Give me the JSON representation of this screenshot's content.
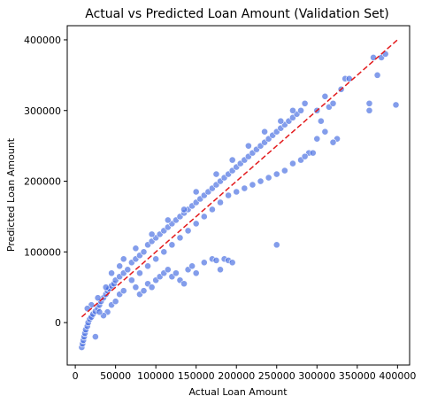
{
  "chart_data": {
    "type": "scatter",
    "title": "Actual vs Predicted Loan Amount (Validation Set)",
    "xlabel": "Actual Loan Amount",
    "ylabel": "Predicted Loan Amount",
    "xlim": [
      -10000,
      415000
    ],
    "ylim": [
      -60000,
      420000
    ],
    "x_ticks": [
      {
        "value": 0,
        "label": "0"
      },
      {
        "value": 50000,
        "label": "50000"
      },
      {
        "value": 100000,
        "label": "100000"
      },
      {
        "value": 150000,
        "label": "150000"
      },
      {
        "value": 200000,
        "label": "200000"
      },
      {
        "value": 250000,
        "label": "250000"
      },
      {
        "value": 300000,
        "label": "300000"
      },
      {
        "value": 350000,
        "label": "350000"
      },
      {
        "value": 400000,
        "label": "400000"
      }
    ],
    "y_ticks": [
      {
        "value": 0,
        "label": "0"
      },
      {
        "value": 100000,
        "label": "100000"
      },
      {
        "value": 200000,
        "label": "200000"
      },
      {
        "value": 300000,
        "label": "300000"
      },
      {
        "value": 400000,
        "label": "400000"
      }
    ],
    "grid": false,
    "legend": "none",
    "point_color": "#4169e1",
    "reference_line": {
      "style": "dashed",
      "color": "#e31a1c",
      "points": [
        [
          8000,
          8000
        ],
        [
          400000,
          400000
        ]
      ]
    },
    "series": [
      {
        "values": [
          [
            8000,
            -35000
          ],
          [
            9000,
            -30000
          ],
          [
            10000,
            -25000
          ],
          [
            11000,
            -20000
          ],
          [
            12000,
            -15000
          ],
          [
            13000,
            -10000
          ],
          [
            15000,
            -5000
          ],
          [
            16000,
            0
          ],
          [
            18000,
            5000
          ],
          [
            20000,
            8000
          ],
          [
            22000,
            12000
          ],
          [
            25000,
            16000
          ],
          [
            28000,
            20000
          ],
          [
            30000,
            25000
          ],
          [
            32000,
            30000
          ],
          [
            35000,
            35000
          ],
          [
            38000,
            40000
          ],
          [
            40000,
            45000
          ],
          [
            42000,
            48000
          ],
          [
            45000,
            52000
          ],
          [
            48000,
            55000
          ],
          [
            50000,
            60000
          ],
          [
            55000,
            65000
          ],
          [
            60000,
            70000
          ],
          [
            65000,
            75000
          ],
          [
            25000,
            -20000
          ],
          [
            40000,
            15000
          ],
          [
            45000,
            25000
          ],
          [
            50000,
            30000
          ],
          [
            55000,
            40000
          ],
          [
            60000,
            45000
          ],
          [
            35000,
            10000
          ],
          [
            30000,
            15000
          ],
          [
            20000,
            25000
          ],
          [
            15000,
            20000
          ],
          [
            28000,
            35000
          ],
          [
            38000,
            50000
          ],
          [
            45000,
            70000
          ],
          [
            55000,
            80000
          ],
          [
            70000,
            85000
          ],
          [
            75000,
            90000
          ],
          [
            80000,
            95000
          ],
          [
            85000,
            100000
          ],
          [
            90000,
            110000
          ],
          [
            95000,
            115000
          ],
          [
            100000,
            120000
          ],
          [
            105000,
            125000
          ],
          [
            110000,
            130000
          ],
          [
            115000,
            135000
          ],
          [
            120000,
            140000
          ],
          [
            125000,
            145000
          ],
          [
            130000,
            150000
          ],
          [
            135000,
            155000
          ],
          [
            140000,
            160000
          ],
          [
            145000,
            165000
          ],
          [
            150000,
            170000
          ],
          [
            155000,
            175000
          ],
          [
            160000,
            180000
          ],
          [
            165000,
            185000
          ],
          [
            170000,
            190000
          ],
          [
            175000,
            195000
          ],
          [
            180000,
            200000
          ],
          [
            185000,
            205000
          ],
          [
            190000,
            210000
          ],
          [
            195000,
            215000
          ],
          [
            200000,
            220000
          ],
          [
            205000,
            225000
          ],
          [
            210000,
            230000
          ],
          [
            215000,
            235000
          ],
          [
            220000,
            240000
          ],
          [
            225000,
            245000
          ],
          [
            230000,
            250000
          ],
          [
            235000,
            255000
          ],
          [
            240000,
            260000
          ],
          [
            245000,
            265000
          ],
          [
            250000,
            270000
          ],
          [
            255000,
            275000
          ],
          [
            260000,
            280000
          ],
          [
            265000,
            285000
          ],
          [
            270000,
            290000
          ],
          [
            275000,
            295000
          ],
          [
            280000,
            300000
          ],
          [
            70000,
            60000
          ],
          [
            80000,
            70000
          ],
          [
            90000,
            80000
          ],
          [
            100000,
            90000
          ],
          [
            110000,
            100000
          ],
          [
            120000,
            110000
          ],
          [
            130000,
            120000
          ],
          [
            140000,
            130000
          ],
          [
            150000,
            140000
          ],
          [
            160000,
            150000
          ],
          [
            170000,
            160000
          ],
          [
            180000,
            170000
          ],
          [
            190000,
            180000
          ],
          [
            200000,
            185000
          ],
          [
            210000,
            190000
          ],
          [
            220000,
            195000
          ],
          [
            230000,
            200000
          ],
          [
            240000,
            205000
          ],
          [
            250000,
            210000
          ],
          [
            260000,
            215000
          ],
          [
            270000,
            225000
          ],
          [
            280000,
            230000
          ],
          [
            290000,
            240000
          ],
          [
            60000,
            90000
          ],
          [
            75000,
            105000
          ],
          [
            95000,
            125000
          ],
          [
            115000,
            145000
          ],
          [
            135000,
            160000
          ],
          [
            150000,
            185000
          ],
          [
            175000,
            210000
          ],
          [
            195000,
            230000
          ],
          [
            215000,
            250000
          ],
          [
            235000,
            270000
          ],
          [
            255000,
            285000
          ],
          [
            270000,
            300000
          ],
          [
            285000,
            310000
          ],
          [
            90000,
            55000
          ],
          [
            95000,
            50000
          ],
          [
            100000,
            60000
          ],
          [
            105000,
            65000
          ],
          [
            110000,
            70000
          ],
          [
            115000,
            75000
          ],
          [
            120000,
            65000
          ],
          [
            125000,
            70000
          ],
          [
            130000,
            60000
          ],
          [
            135000,
            55000
          ],
          [
            140000,
            75000
          ],
          [
            145000,
            80000
          ],
          [
            150000,
            70000
          ],
          [
            160000,
            85000
          ],
          [
            170000,
            90000
          ],
          [
            175000,
            88000
          ],
          [
            180000,
            75000
          ],
          [
            185000,
            90000
          ],
          [
            190000,
            88000
          ],
          [
            195000,
            85000
          ],
          [
            80000,
            40000
          ],
          [
            85000,
            45000
          ],
          [
            75000,
            50000
          ],
          [
            250000,
            110000
          ],
          [
            300000,
            300000
          ],
          [
            305000,
            285000
          ],
          [
            310000,
            320000
          ],
          [
            315000,
            305000
          ],
          [
            320000,
            310000
          ],
          [
            325000,
            260000
          ],
          [
            330000,
            330000
          ],
          [
            335000,
            345000
          ],
          [
            340000,
            345000
          ],
          [
            320000,
            255000
          ],
          [
            310000,
            270000
          ],
          [
            300000,
            260000
          ],
          [
            295000,
            240000
          ],
          [
            285000,
            235000
          ],
          [
            365000,
            310000
          ],
          [
            370000,
            375000
          ],
          [
            375000,
            350000
          ],
          [
            380000,
            375000
          ],
          [
            365000,
            300000
          ],
          [
            398000,
            308000
          ],
          [
            385000,
            380000
          ]
        ]
      }
    ]
  }
}
